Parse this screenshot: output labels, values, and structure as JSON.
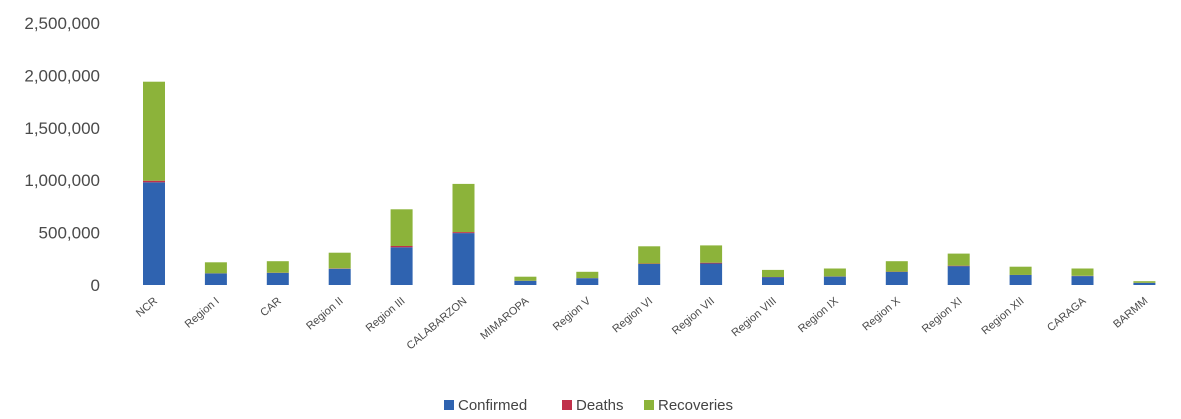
{
  "chart_data": {
    "type": "bar",
    "stacked": true,
    "title": "",
    "xlabel": "",
    "ylabel": "",
    "ylim": [
      0,
      2500000
    ],
    "yticks": [
      0,
      500000,
      1000000,
      1500000,
      2000000,
      2500000
    ],
    "ytick_labels": [
      "0",
      "500,000",
      "1,000,000",
      "1,500,000",
      "2,000,000",
      "2,500,000"
    ],
    "grid": false,
    "legend_position": "bottom",
    "categories": [
      "NCR",
      "Region I",
      "CAR",
      "Region II",
      "Region III",
      "CALABARZON",
      "MIMAROPA",
      "Region V",
      "Region VI",
      "Region VII",
      "Region VIII",
      "Region IX",
      "Region X",
      "Region XI",
      "Region XII",
      "CARAGA",
      "BARMM"
    ],
    "series": [
      {
        "name": "Confirmed",
        "color": "#2f63b0",
        "values": [
          980000,
          110000,
          115000,
          155000,
          360000,
          495000,
          40000,
          65000,
          200000,
          205000,
          75000,
          80000,
          125000,
          180000,
          95000,
          85000,
          20000
        ]
      },
      {
        "name": "Deaths",
        "color": "#c0304a",
        "values": [
          15000,
          2000,
          2000,
          3000,
          12000,
          10000,
          1000,
          1000,
          4000,
          8000,
          1500,
          2000,
          2500,
          4500,
          2000,
          2000,
          800
        ]
      },
      {
        "name": "Recoveries",
        "color": "#8cb33a",
        "values": [
          945000,
          105000,
          110000,
          150000,
          350000,
          460000,
          38000,
          60000,
          165000,
          165000,
          68000,
          75000,
          100000,
          115000,
          78000,
          70000,
          15000
        ]
      }
    ]
  }
}
